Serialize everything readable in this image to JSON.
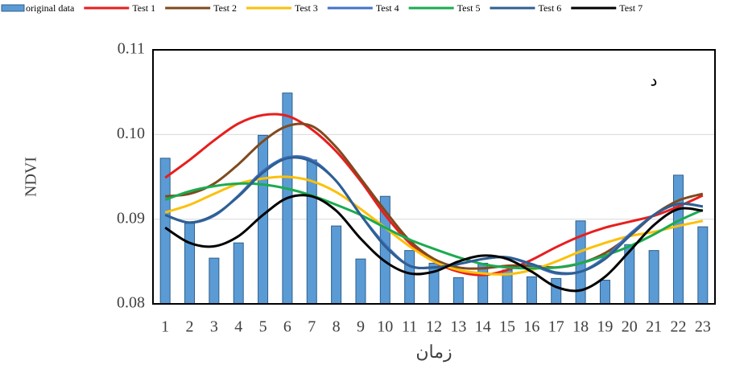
{
  "chart_data": {
    "type": "bar",
    "y_label": "NDVI",
    "x_label": "زمان",
    "annotation": "د",
    "categories": [
      "1",
      "2",
      "3",
      "4",
      "5",
      "6",
      "7",
      "8",
      "9",
      "10",
      "11",
      "12",
      "13",
      "14",
      "15",
      "16",
      "17",
      "18",
      "19",
      "20",
      "21",
      "22",
      "23"
    ],
    "ylim": [
      0.08,
      0.11
    ],
    "yticks": [
      0.08,
      0.09,
      {
        "value": 0.1,
        "label": "0.10"
      },
      0.11
    ],
    "grid": true,
    "series": [
      {
        "name": "original data",
        "type": "bar",
        "color": "#5b9bd5",
        "values": [
          0.0972,
          0.0895,
          0.0854,
          0.0872,
          0.0999,
          0.1049,
          0.097,
          0.0892,
          0.0853,
          0.0927,
          0.0863,
          0.0848,
          0.0831,
          0.0848,
          0.084,
          0.0832,
          0.083,
          0.0898,
          0.0828,
          0.087,
          0.0863,
          0.0952,
          0.0891
        ]
      },
      {
        "name": "Test 1",
        "type": "line",
        "color": "#e81e1e",
        "values": [
          0.0949,
          0.097,
          0.0993,
          0.1013,
          0.1023,
          0.1022,
          0.1006,
          0.098,
          0.0945,
          0.0905,
          0.0872,
          0.085,
          0.0838,
          0.0834,
          0.084,
          0.0852,
          0.0867,
          0.088,
          0.089,
          0.0897,
          0.0904,
          0.0915,
          0.0928
        ]
      },
      {
        "name": "Test 2",
        "type": "line",
        "color": "#7f4a1e",
        "values": [
          0.0927,
          0.093,
          0.0942,
          0.0965,
          0.0992,
          0.101,
          0.101,
          0.0985,
          0.0948,
          0.091,
          0.0875,
          0.0853,
          0.0843,
          0.0842,
          0.0845,
          0.0845,
          0.0843,
          0.0848,
          0.086,
          0.088,
          0.0905,
          0.0922,
          0.093
        ]
      },
      {
        "name": "Test 3",
        "type": "line",
        "color": "#fcc00a",
        "values": [
          0.0908,
          0.0917,
          0.093,
          0.0942,
          0.0948,
          0.095,
          0.0945,
          0.0932,
          0.0912,
          0.089,
          0.0868,
          0.085,
          0.084,
          0.0836,
          0.0835,
          0.084,
          0.085,
          0.0862,
          0.0872,
          0.088,
          0.0885,
          0.0892,
          0.0898
        ]
      },
      {
        "name": "Test 4",
        "type": "line",
        "color": "#4472c4",
        "values": [
          0.0905,
          0.0896,
          0.0904,
          0.0928,
          0.0957,
          0.0973,
          0.097,
          0.0945,
          0.0905,
          0.087,
          0.0845,
          0.0843,
          0.0847,
          0.0853,
          0.0855,
          0.0846,
          0.0836,
          0.0838,
          0.0855,
          0.0882,
          0.0905,
          0.0918,
          0.0915
        ]
      },
      {
        "name": "Test 5",
        "type": "line",
        "color": "#1aab50",
        "values": [
          0.0923,
          0.0933,
          0.0939,
          0.0942,
          0.0941,
          0.0936,
          0.0928,
          0.0917,
          0.0905,
          0.089,
          0.0876,
          0.0865,
          0.0855,
          0.0847,
          0.0843,
          0.0842,
          0.0843,
          0.0848,
          0.0857,
          0.0868,
          0.0882,
          0.0898,
          0.0911
        ]
      },
      {
        "name": "Test 6",
        "type": "line",
        "color": "#2e5f91",
        "values": [
          0.0905,
          0.0896,
          0.0905,
          0.0927,
          0.0955,
          0.0972,
          0.0968,
          0.0945,
          0.0905,
          0.0868,
          0.0845,
          0.0843,
          0.0847,
          0.0853,
          0.0855,
          0.0847,
          0.0837,
          0.0838,
          0.0853,
          0.088,
          0.0905,
          0.0918,
          0.0915
        ]
      },
      {
        "name": "Test 7",
        "type": "line",
        "color": "#000000",
        "values": [
          0.089,
          0.0872,
          0.0868,
          0.088,
          0.0905,
          0.0925,
          0.0927,
          0.091,
          0.0877,
          0.085,
          0.0836,
          0.0838,
          0.085,
          0.0857,
          0.0853,
          0.0838,
          0.082,
          0.0816,
          0.0832,
          0.0862,
          0.0893,
          0.0912,
          0.091
        ]
      }
    ]
  }
}
